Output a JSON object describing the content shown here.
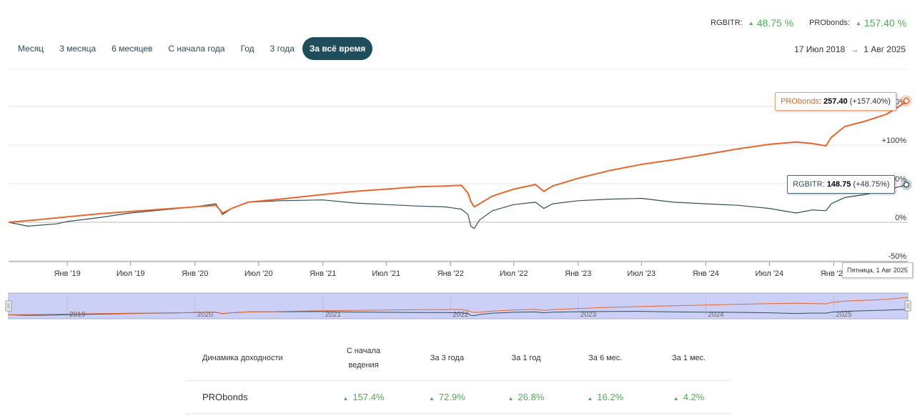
{
  "legend": {
    "rgbitr": {
      "name": "RGBITR:",
      "change": "48.75 %"
    },
    "probonds": {
      "name": "PRObonds:",
      "change": "157.40 %"
    }
  },
  "range_buttons": [
    "Месяц",
    "3 месяца",
    "6 месяцев",
    "С начала года",
    "Год",
    "3 года",
    "За всё время"
  ],
  "active_range": "За всё время",
  "date_range": {
    "from": "17 Июл 2018",
    "arrow": "→",
    "to": "1 Авг 2025"
  },
  "tooltips": {
    "probonds": {
      "name": "PRObonds",
      "value": "257.40",
      "change": "(+157.40%)"
    },
    "rgbitr": {
      "name": "RGBITR",
      "value": "148.75",
      "change": "(+48.75%)"
    },
    "date": "Пятница, 1 Авг 2025"
  },
  "colors": {
    "probonds": "#e8672c",
    "rgbitr": "#2f4f5c",
    "positive": "#4caf50",
    "navigator_bg": "#cdd0f6",
    "active_button": "#1f4d5c"
  },
  "chart_data": {
    "type": "line",
    "x_start": "2018-07-17",
    "x_end": "2025-08-01",
    "y_ticks": [
      "-50%",
      "0%",
      "+50%",
      "+100%",
      "+150%"
    ],
    "y_tick_values": [
      -50,
      0,
      50,
      100,
      150
    ],
    "ylim": [
      -50,
      200
    ],
    "x_ticks": [
      {
        "label": "Янв '19",
        "date": "2019-01-01"
      },
      {
        "label": "Июл '19",
        "date": "2019-07-01"
      },
      {
        "label": "Янв '20",
        "date": "2020-01-01"
      },
      {
        "label": "Июл '20",
        "date": "2020-07-01"
      },
      {
        "label": "Янв '21",
        "date": "2021-01-01"
      },
      {
        "label": "Июл '21",
        "date": "2021-07-01"
      },
      {
        "label": "Янв '22",
        "date": "2022-01-01"
      },
      {
        "label": "Июл '22",
        "date": "2022-07-01"
      },
      {
        "label": "Янв '23",
        "date": "2023-01-01"
      },
      {
        "label": "Июл '23",
        "date": "2023-07-01"
      },
      {
        "label": "Янв '24",
        "date": "2024-01-01"
      },
      {
        "label": "Июл '24",
        "date": "2024-07-01"
      },
      {
        "label": "Янв '25",
        "date": "2025-01-01"
      }
    ],
    "navigator_labels": [
      {
        "label": "2019",
        "date": "2019-01-01"
      },
      {
        "label": "2020",
        "date": "2020-01-01"
      },
      {
        "label": "2021",
        "date": "2021-01-01"
      },
      {
        "label": "2022",
        "date": "2022-01-01"
      },
      {
        "label": "2023",
        "date": "2023-01-01"
      },
      {
        "label": "2024",
        "date": "2024-01-01"
      },
      {
        "label": "2025",
        "date": "2025-01-01"
      }
    ],
    "series": [
      {
        "name": "PRObonds",
        "points": [
          [
            "2018-07-17",
            0
          ],
          [
            "2018-10-01",
            3
          ],
          [
            "2019-01-01",
            7
          ],
          [
            "2019-04-01",
            11
          ],
          [
            "2019-07-01",
            14
          ],
          [
            "2019-10-01",
            17
          ],
          [
            "2020-01-01",
            20
          ],
          [
            "2020-03-01",
            22
          ],
          [
            "2020-03-20",
            12
          ],
          [
            "2020-04-15",
            18
          ],
          [
            "2020-06-01",
            26
          ],
          [
            "2020-09-01",
            30
          ],
          [
            "2021-01-01",
            36
          ],
          [
            "2021-04-01",
            40
          ],
          [
            "2021-07-01",
            43
          ],
          [
            "2021-10-01",
            46
          ],
          [
            "2021-12-15",
            47
          ],
          [
            "2022-02-01",
            48
          ],
          [
            "2022-02-20",
            38
          ],
          [
            "2022-02-28",
            27
          ],
          [
            "2022-03-10",
            20
          ],
          [
            "2022-03-25",
            24
          ],
          [
            "2022-05-01",
            34
          ],
          [
            "2022-07-01",
            43
          ],
          [
            "2022-09-01",
            49
          ],
          [
            "2022-09-25",
            40
          ],
          [
            "2022-10-20",
            47
          ],
          [
            "2023-01-01",
            57
          ],
          [
            "2023-04-01",
            67
          ],
          [
            "2023-07-01",
            75
          ],
          [
            "2023-10-01",
            81
          ],
          [
            "2024-01-01",
            88
          ],
          [
            "2024-04-01",
            95
          ],
          [
            "2024-07-01",
            101
          ],
          [
            "2024-09-15",
            104
          ],
          [
            "2024-11-01",
            102
          ],
          [
            "2024-12-10",
            99
          ],
          [
            "2024-12-25",
            110
          ],
          [
            "2025-02-01",
            124
          ],
          [
            "2025-04-01",
            131
          ],
          [
            "2025-06-01",
            140
          ],
          [
            "2025-08-01",
            157.4
          ]
        ]
      },
      {
        "name": "RGBITR",
        "points": [
          [
            "2018-07-17",
            0
          ],
          [
            "2018-09-10",
            -5
          ],
          [
            "2018-12-01",
            -2
          ],
          [
            "2019-01-01",
            1
          ],
          [
            "2019-04-01",
            6
          ],
          [
            "2019-07-01",
            12
          ],
          [
            "2019-10-01",
            16
          ],
          [
            "2020-01-01",
            20
          ],
          [
            "2020-03-01",
            24
          ],
          [
            "2020-03-20",
            10
          ],
          [
            "2020-04-15",
            18
          ],
          [
            "2020-06-01",
            26
          ],
          [
            "2020-09-01",
            28
          ],
          [
            "2021-01-01",
            29
          ],
          [
            "2021-04-01",
            25
          ],
          [
            "2021-07-01",
            23
          ],
          [
            "2021-10-01",
            21
          ],
          [
            "2021-12-15",
            20
          ],
          [
            "2022-02-01",
            17
          ],
          [
            "2022-02-20",
            10
          ],
          [
            "2022-02-28",
            -5
          ],
          [
            "2022-03-10",
            -8
          ],
          [
            "2022-03-25",
            3
          ],
          [
            "2022-05-01",
            15
          ],
          [
            "2022-07-01",
            23
          ],
          [
            "2022-09-01",
            26
          ],
          [
            "2022-09-25",
            18
          ],
          [
            "2022-10-20",
            24
          ],
          [
            "2023-01-01",
            28
          ],
          [
            "2023-04-01",
            30
          ],
          [
            "2023-07-01",
            31
          ],
          [
            "2023-10-01",
            26
          ],
          [
            "2024-01-01",
            24
          ],
          [
            "2024-04-01",
            22
          ],
          [
            "2024-07-01",
            18
          ],
          [
            "2024-09-15",
            12
          ],
          [
            "2024-11-01",
            16
          ],
          [
            "2024-12-10",
            15
          ],
          [
            "2024-12-25",
            24
          ],
          [
            "2025-02-01",
            32
          ],
          [
            "2025-04-01",
            36
          ],
          [
            "2025-06-01",
            42
          ],
          [
            "2025-08-01",
            48.75
          ]
        ]
      }
    ]
  },
  "returns_table": {
    "headers": [
      "Динамика доходности",
      [
        "С начала",
        "ведения"
      ],
      "За 3 года",
      "За 1 год",
      "За 6 мес.",
      "За 1 мес."
    ],
    "rows": [
      {
        "name": "PRObonds",
        "values": [
          "157.4%",
          "72.9%",
          "26.8%",
          "16.2%",
          "4.2%"
        ]
      }
    ]
  }
}
